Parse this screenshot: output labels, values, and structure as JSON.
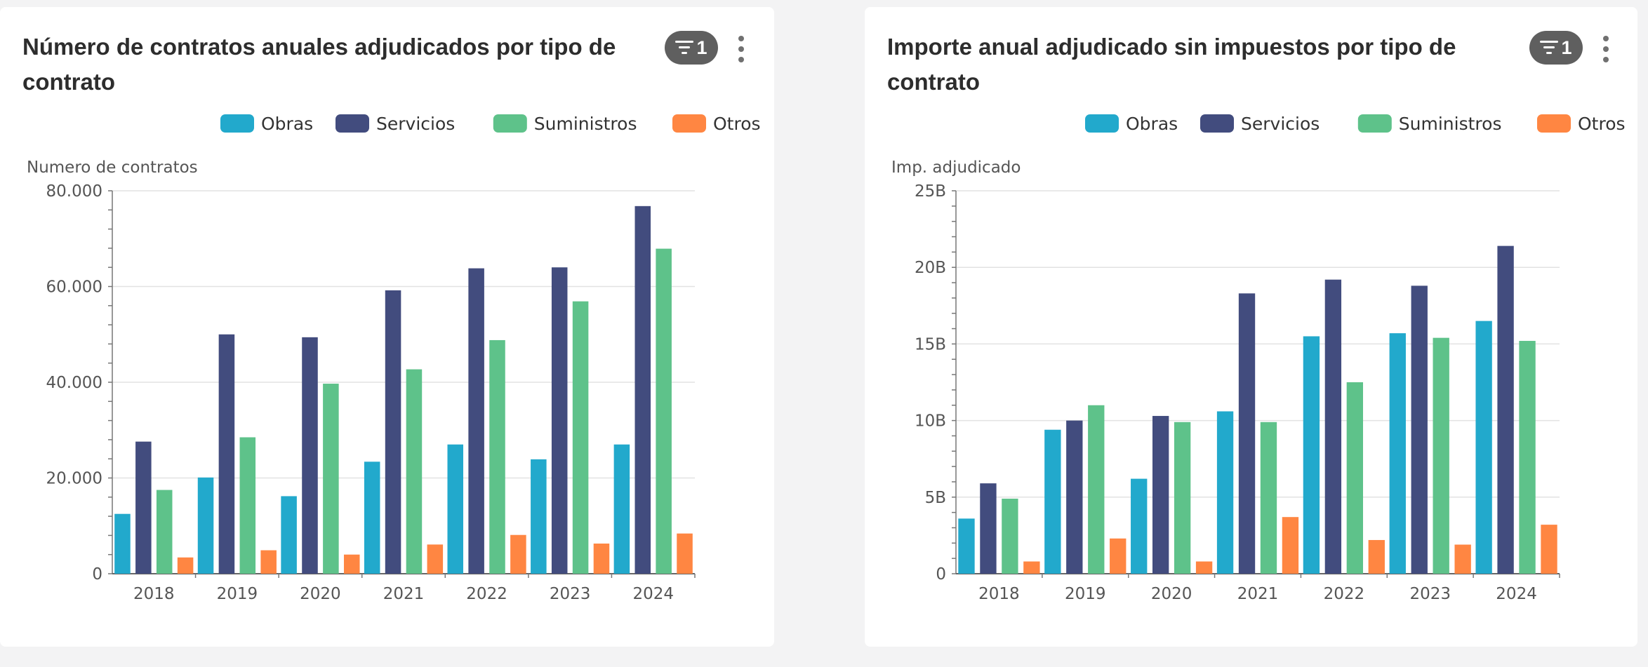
{
  "panels": [
    {
      "title": "Número de contratos anuales adjudicados por tipo de contrato",
      "filter_count": "1",
      "menu_icon": "more-vertical-icon",
      "filter_icon": "filter-icon"
    },
    {
      "title": "Importe anual adjudicado sin impuestos por tipo de contrato",
      "filter_count": "1",
      "menu_icon": "more-vertical-icon",
      "filter_icon": "filter-icon"
    }
  ],
  "chart_data": [
    {
      "type": "bar",
      "title": "Número de contratos anuales adjudicados por tipo de contrato",
      "ylabel": "Numero de contratos",
      "xlabel": "",
      "ylim": [
        0,
        80000
      ],
      "y_ticks": [
        0,
        20000,
        40000,
        60000,
        80000
      ],
      "y_tick_labels": [
        "0",
        "20.000",
        "40.000",
        "60.000",
        "80.000"
      ],
      "grid": true,
      "legend_position": "top-right",
      "categories": [
        "2018",
        "2019",
        "2020",
        "2021",
        "2022",
        "2023",
        "2024"
      ],
      "series": [
        {
          "name": "Obras",
          "color": "#22a9cc",
          "values": [
            12500,
            20100,
            16200,
            23400,
            27000,
            23900,
            27000
          ]
        },
        {
          "name": "Servicios",
          "color": "#424c7e",
          "values": [
            27600,
            50000,
            49400,
            59200,
            63800,
            64000,
            76800
          ]
        },
        {
          "name": "Suministros",
          "color": "#5ec28a",
          "values": [
            17500,
            28500,
            39700,
            42700,
            48800,
            56900,
            67900
          ]
        },
        {
          "name": "Otros",
          "color": "#ff8642",
          "values": [
            3400,
            4900,
            4000,
            6100,
            8100,
            6300,
            8400
          ]
        }
      ]
    },
    {
      "type": "bar",
      "title": "Importe anual adjudicado sin impuestos por tipo de contrato",
      "ylabel": "Imp. adjudicado",
      "xlabel": "",
      "ylim": [
        0,
        25
      ],
      "y_unit": "B",
      "y_ticks": [
        0,
        5,
        10,
        15,
        20,
        25
      ],
      "y_tick_labels": [
        "0",
        "5B",
        "10B",
        "15B",
        "20B",
        "25B"
      ],
      "grid": true,
      "legend_position": "top-right",
      "categories": [
        "2018",
        "2019",
        "2020",
        "2021",
        "2022",
        "2023",
        "2024"
      ],
      "series": [
        {
          "name": "Obras",
          "color": "#22a9cc",
          "values": [
            3.6,
            9.4,
            6.2,
            10.6,
            15.5,
            15.7,
            16.5
          ]
        },
        {
          "name": "Servicios",
          "color": "#424c7e",
          "values": [
            5.9,
            10.0,
            10.3,
            18.3,
            19.2,
            18.8,
            21.4
          ]
        },
        {
          "name": "Suministros",
          "color": "#5ec28a",
          "values": [
            4.9,
            11.0,
            9.9,
            9.9,
            12.5,
            15.4,
            15.2
          ]
        },
        {
          "name": "Otros",
          "color": "#ff8642",
          "values": [
            0.8,
            2.3,
            0.8,
            3.7,
            2.2,
            1.9,
            3.2
          ]
        }
      ]
    }
  ]
}
